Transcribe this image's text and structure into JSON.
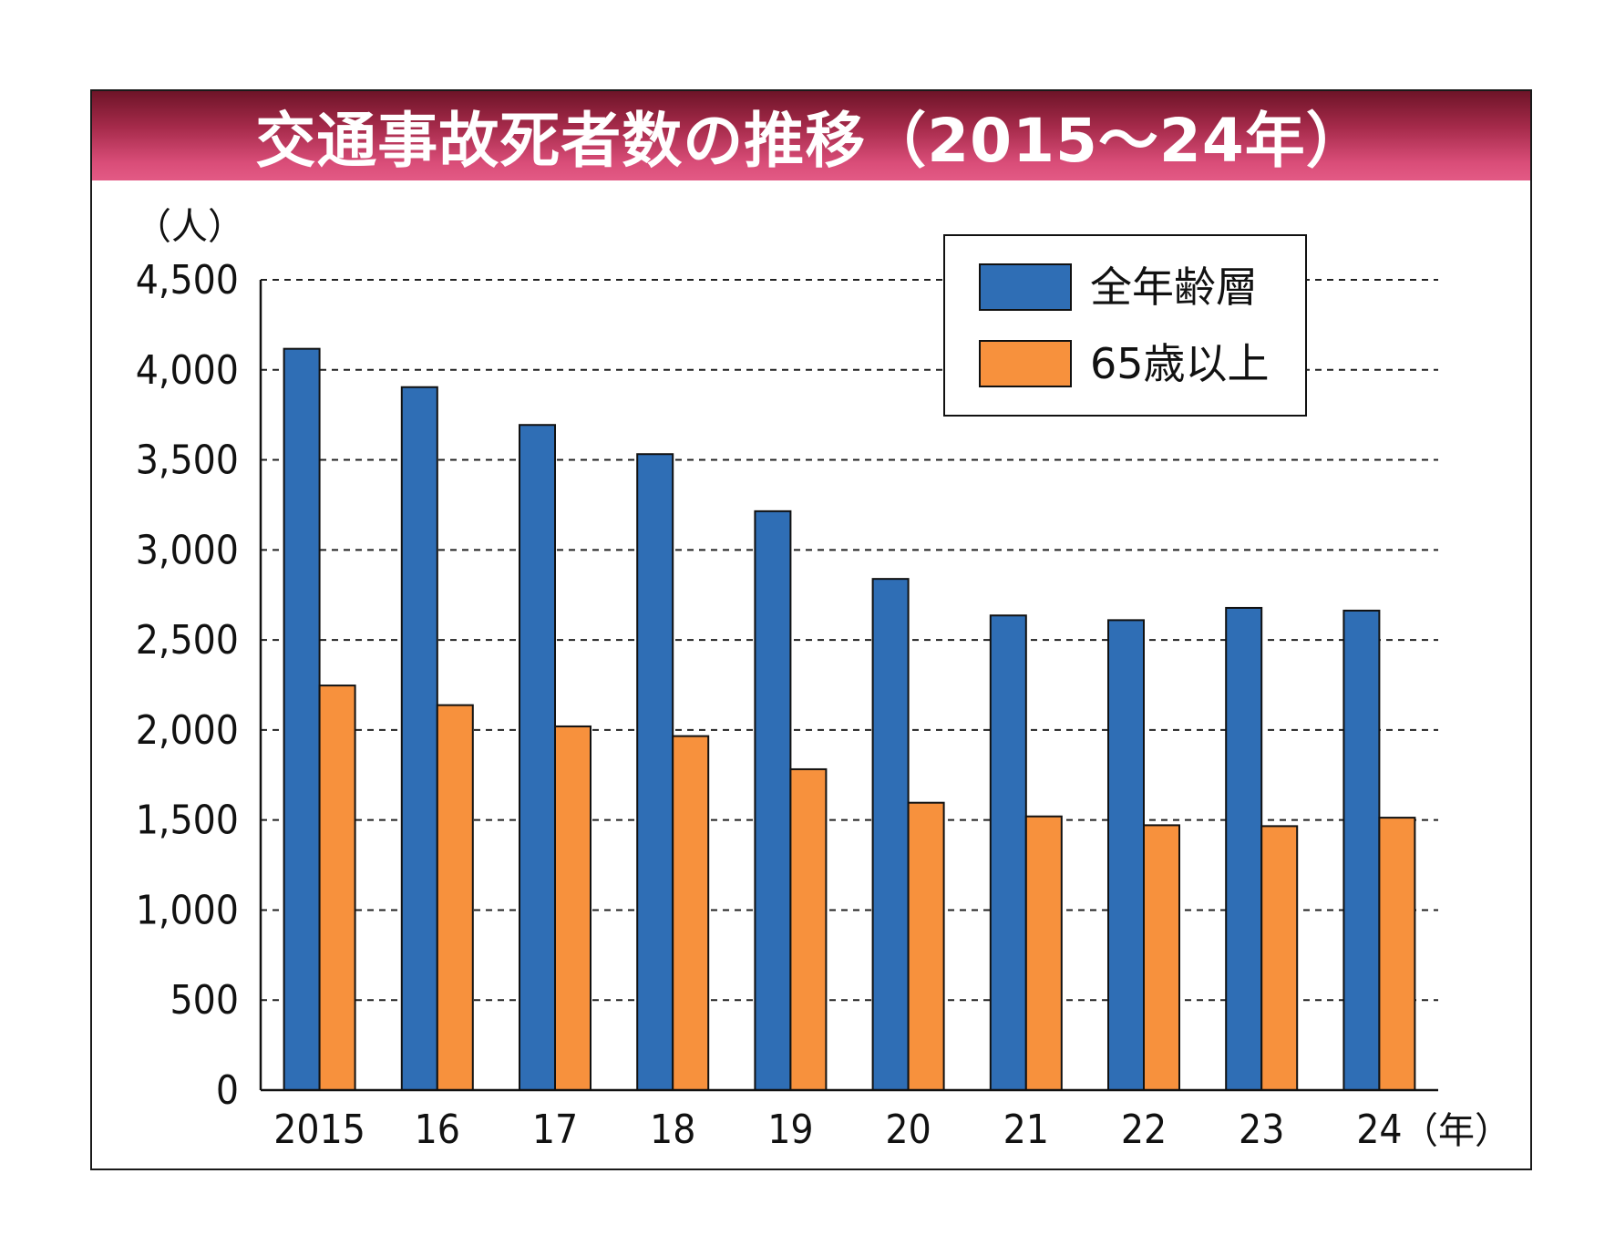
{
  "title": "交通事故死者数の推移（2015～24年）",
  "chart_data": {
    "type": "bar",
    "title": "交通事故死者数の推移（2015～24年）",
    "ylabel": "（人）",
    "xlabel": "（年）",
    "categories": [
      "2015",
      "16",
      "17",
      "18",
      "19",
      "20",
      "21",
      "22",
      "23",
      "24"
    ],
    "ylim": [
      0,
      4500
    ],
    "yticks": [
      0,
      500,
      1000,
      1500,
      2000,
      2500,
      3000,
      3500,
      4000,
      4500
    ],
    "ytick_labels": [
      "0",
      "500",
      "1,000",
      "1,500",
      "2,000",
      "2,500",
      "3,000",
      "3,500",
      "4,000",
      "4,500"
    ],
    "grid": "dashed-horizontal",
    "legend_position": "top-right",
    "series": [
      {
        "name": "全年齢層",
        "color": "#2f6eb5",
        "values": [
          4117,
          3904,
          3694,
          3532,
          3215,
          2839,
          2636,
          2610,
          2678,
          2663
        ]
      },
      {
        "name": "65歳以上",
        "color": "#f7913d",
        "values": [
          2247,
          2138,
          2020,
          1966,
          1782,
          1596,
          1520,
          1471,
          1466,
          1513
        ]
      }
    ]
  }
}
